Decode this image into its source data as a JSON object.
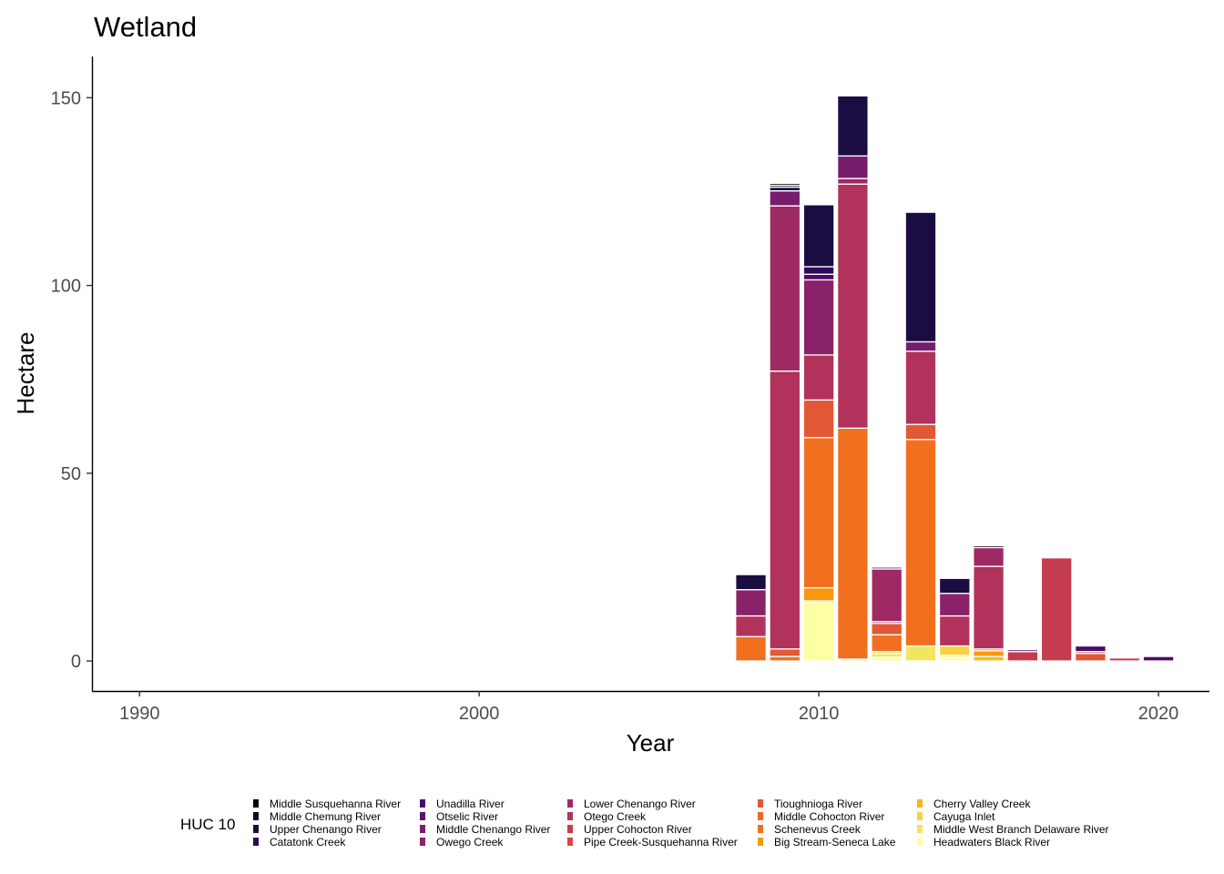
{
  "chart_data": {
    "type": "bar",
    "stacked": true,
    "title": "Wetland",
    "xlabel": "Year",
    "ylabel": "Hectare",
    "xlim": [
      1988.6,
      2021.5
    ],
    "ylim": [
      -8,
      161
    ],
    "xticks": [
      1990,
      2000,
      2010,
      2020
    ],
    "yticks": [
      0,
      50,
      100,
      150
    ],
    "grid": false,
    "legend_position": "bottom",
    "legend_title": "HUC 10",
    "categories": [
      2008,
      2009,
      2010,
      2011,
      2012,
      2013,
      2014,
      2015,
      2016,
      2017,
      2018,
      2019,
      2020
    ],
    "series": [
      {
        "name": "Middle Susquehanna River",
        "color": "#000004",
        "values": [
          0,
          0.5,
          0,
          0,
          0,
          0,
          0,
          0,
          0,
          0,
          0,
          0,
          0
        ]
      },
      {
        "name": "Middle Chemung River",
        "color": "#0d0a29",
        "values": [
          0,
          0.5,
          0,
          0,
          0,
          0,
          0,
          0,
          0,
          0,
          0,
          0,
          0
        ]
      },
      {
        "name": "Upper Chenango River",
        "color": "#1b0c41",
        "values": [
          4,
          1.0,
          16.5,
          16,
          0,
          34.5,
          4,
          0.5,
          0,
          0,
          0,
          0,
          0
        ]
      },
      {
        "name": "Catatonk Creek",
        "color": "#2f0a5b",
        "values": [
          0,
          0,
          2,
          0,
          0,
          0,
          0,
          0,
          0,
          0,
          0,
          0,
          0
        ]
      },
      {
        "name": "Unadilla River",
        "color": "#4a0c6b",
        "values": [
          0,
          0,
          1.5,
          0,
          0,
          0,
          0,
          0,
          0.5,
          0,
          1.5,
          0,
          1.2
        ]
      },
      {
        "name": "Otselic River",
        "color": "#5f1370",
        "values": [
          0,
          0,
          0,
          0,
          0,
          0,
          0,
          0,
          0,
          0,
          0,
          0,
          0
        ]
      },
      {
        "name": "Middle Chenango River",
        "color": "#781c6d",
        "values": [
          0,
          4,
          0,
          6,
          0.5,
          2.5,
          0,
          0,
          0,
          0,
          0,
          0,
          0
        ]
      },
      {
        "name": "Owego Creek",
        "color": "#8a226a",
        "values": [
          7,
          0,
          20,
          0,
          0,
          0,
          6,
          0,
          0,
          0,
          0,
          0,
          0
        ]
      },
      {
        "name": "Lower Chenango River",
        "color": "#9e2a63",
        "values": [
          0,
          44,
          0,
          1.5,
          14,
          0,
          0,
          5,
          0,
          0,
          0,
          0,
          0
        ]
      },
      {
        "name": "Otego Creek",
        "color": "#b1325a",
        "values": [
          5.5,
          74,
          12,
          65,
          0.5,
          19.5,
          8,
          22,
          0,
          0.3,
          0,
          0,
          0
        ]
      },
      {
        "name": "Upper Cohocton River",
        "color": "#c43c4e",
        "values": [
          0,
          0,
          0,
          0,
          0,
          0,
          0,
          0,
          2.5,
          27.5,
          0.5,
          0.8,
          0
        ]
      },
      {
        "name": "Pipe Creek-Susquehanna River",
        "color": "#d44842",
        "values": [
          0,
          0,
          0,
          0,
          0,
          0,
          0,
          0,
          0,
          0,
          0,
          0,
          0
        ]
      },
      {
        "name": "Tioughnioga River",
        "color": "#e25734",
        "values": [
          0,
          2,
          10,
          0,
          3,
          4,
          0,
          0,
          0,
          0,
          2,
          0,
          0
        ]
      },
      {
        "name": "Middle Cohocton River",
        "color": "#ed6925",
        "values": [
          0,
          0,
          0,
          0,
          0,
          0,
          0,
          0,
          0,
          0,
          0,
          0,
          0
        ]
      },
      {
        "name": "Schenevus Creek",
        "color": "#f07020",
        "values": [
          6.5,
          1.2,
          40,
          61.5,
          4.5,
          55,
          0,
          0.5,
          0,
          0,
          0,
          0,
          0
        ]
      },
      {
        "name": "Big Stream-Seneca Lake",
        "color": "#f8980a",
        "values": [
          0,
          0,
          3.5,
          0,
          0,
          0,
          0,
          1.5,
          0,
          0,
          0,
          0,
          0
        ]
      },
      {
        "name": "Cherry Valley Creek",
        "color": "#fbb61a",
        "values": [
          0,
          0,
          0,
          0,
          0,
          0,
          0,
          1.2,
          0,
          0,
          0,
          0,
          0
        ]
      },
      {
        "name": "Cayuga Inlet",
        "color": "#f8d142",
        "values": [
          0,
          0,
          0,
          0,
          0.5,
          0,
          2.5,
          0,
          0,
          0,
          0,
          0,
          0
        ]
      },
      {
        "name": "Middle West Branch Delaware River",
        "color": "#f2e661",
        "values": [
          0,
          0,
          0.5,
          0,
          1,
          4,
          0.5,
          0,
          0,
          0,
          0,
          0,
          0
        ]
      },
      {
        "name": "Headwaters Black River",
        "color": "#fcffa4",
        "values": [
          0,
          0,
          15.5,
          0.5,
          1,
          0,
          1,
          0,
          0,
          0,
          0,
          0,
          0
        ]
      }
    ]
  }
}
